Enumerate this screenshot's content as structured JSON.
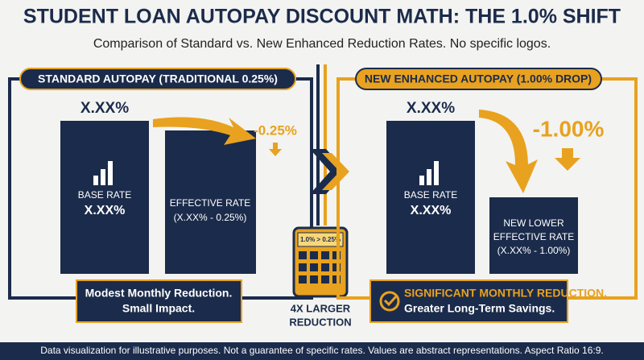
{
  "header": {
    "title": "STUDENT LOAN AUTOPAY DISCOUNT MATH: THE 1.0% SHIFT",
    "subtitle": "Comparison of Standard vs. New Enhanced Reduction Rates. No specific logos."
  },
  "left_panel": {
    "title": "STANDARD AUTOPAY (TRADITIONAL 0.25%)",
    "base_top": "X.XX%",
    "base_label": "BASE RATE",
    "base_value": "X.XX%",
    "drop": "-0.25%",
    "effective_lines": [
      "EFFECTIVE RATE",
      "(X.XX% - 0.25%)"
    ],
    "summary": [
      "Modest Monthly Reduction.",
      "Small Impact."
    ]
  },
  "right_panel": {
    "title": "NEW ENHANCED AUTOPAY (1.00% DROP)",
    "base_top": "X.XX%",
    "base_label": "BASE RATE",
    "base_value": "X.XX%",
    "drop": "-1.00%",
    "effective_lines": [
      "NEW LOWER",
      "EFFECTIVE RATE",
      "(X.XX% - 1.00%)"
    ],
    "summary": [
      "SIGNIFICANT MONTHLY REDUCTION.",
      "Greater Long-Term Savings."
    ]
  },
  "center": {
    "calculator_display": "1.0% > 0.25%",
    "caption": [
      "4X LARGER",
      "REDUCTION"
    ]
  },
  "footer": "Data visualization for illustrative purposes. Not a guarantee of specific rates. Values are abstract representations. Aspect Ratio 16:9."
}
